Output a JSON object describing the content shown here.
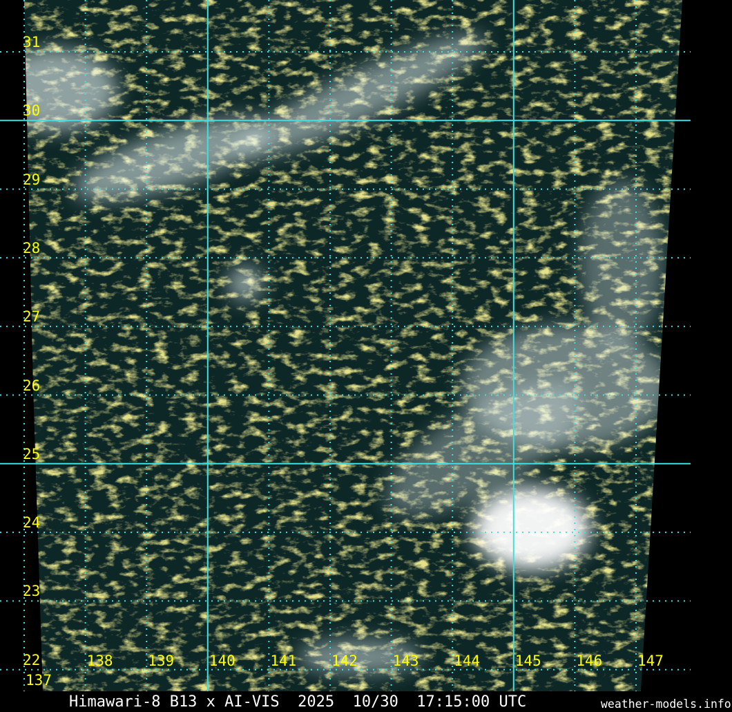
{
  "title": "Himawari-8 B13 x AI-VIS  2025  10/30  17:15:00 UTC",
  "credit": "weather-models.info",
  "grid": {
    "latitudes": [
      "31",
      "30",
      "29",
      "28",
      "27",
      "26",
      "25",
      "24",
      "23",
      "22"
    ],
    "longitudes": [
      "137",
      "138",
      "139",
      "140",
      "141",
      "142",
      "143",
      "144",
      "145",
      "146",
      "147"
    ],
    "major_latitudes": [
      "30",
      "25"
    ],
    "major_longitudes": [
      "140",
      "145"
    ],
    "grid_color": "#40e0e0",
    "label_color": "#ffff00"
  },
  "imagery": {
    "ocean_color": "#0d2626",
    "low_cloud_color": "#c8c040",
    "high_cloud_color": "#e8f4f4"
  }
}
